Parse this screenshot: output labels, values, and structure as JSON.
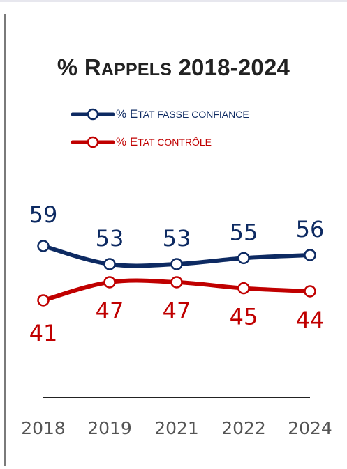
{
  "chart_data": {
    "type": "line",
    "title": "% Rappels 2018-2024",
    "categories": [
      "2018",
      "2019",
      "2021",
      "2022",
      "2024"
    ],
    "series": [
      {
        "name": "% Etat fasse confiance",
        "color": "#0d2a62",
        "values": [
          59,
          53,
          53,
          55,
          56
        ]
      },
      {
        "name": "% Etat contrôle",
        "color": "#c00000",
        "values": [
          41,
          47,
          47,
          45,
          44
        ]
      }
    ],
    "xlabel": "",
    "ylabel": "",
    "legend_position": "top-left",
    "grid": false
  }
}
